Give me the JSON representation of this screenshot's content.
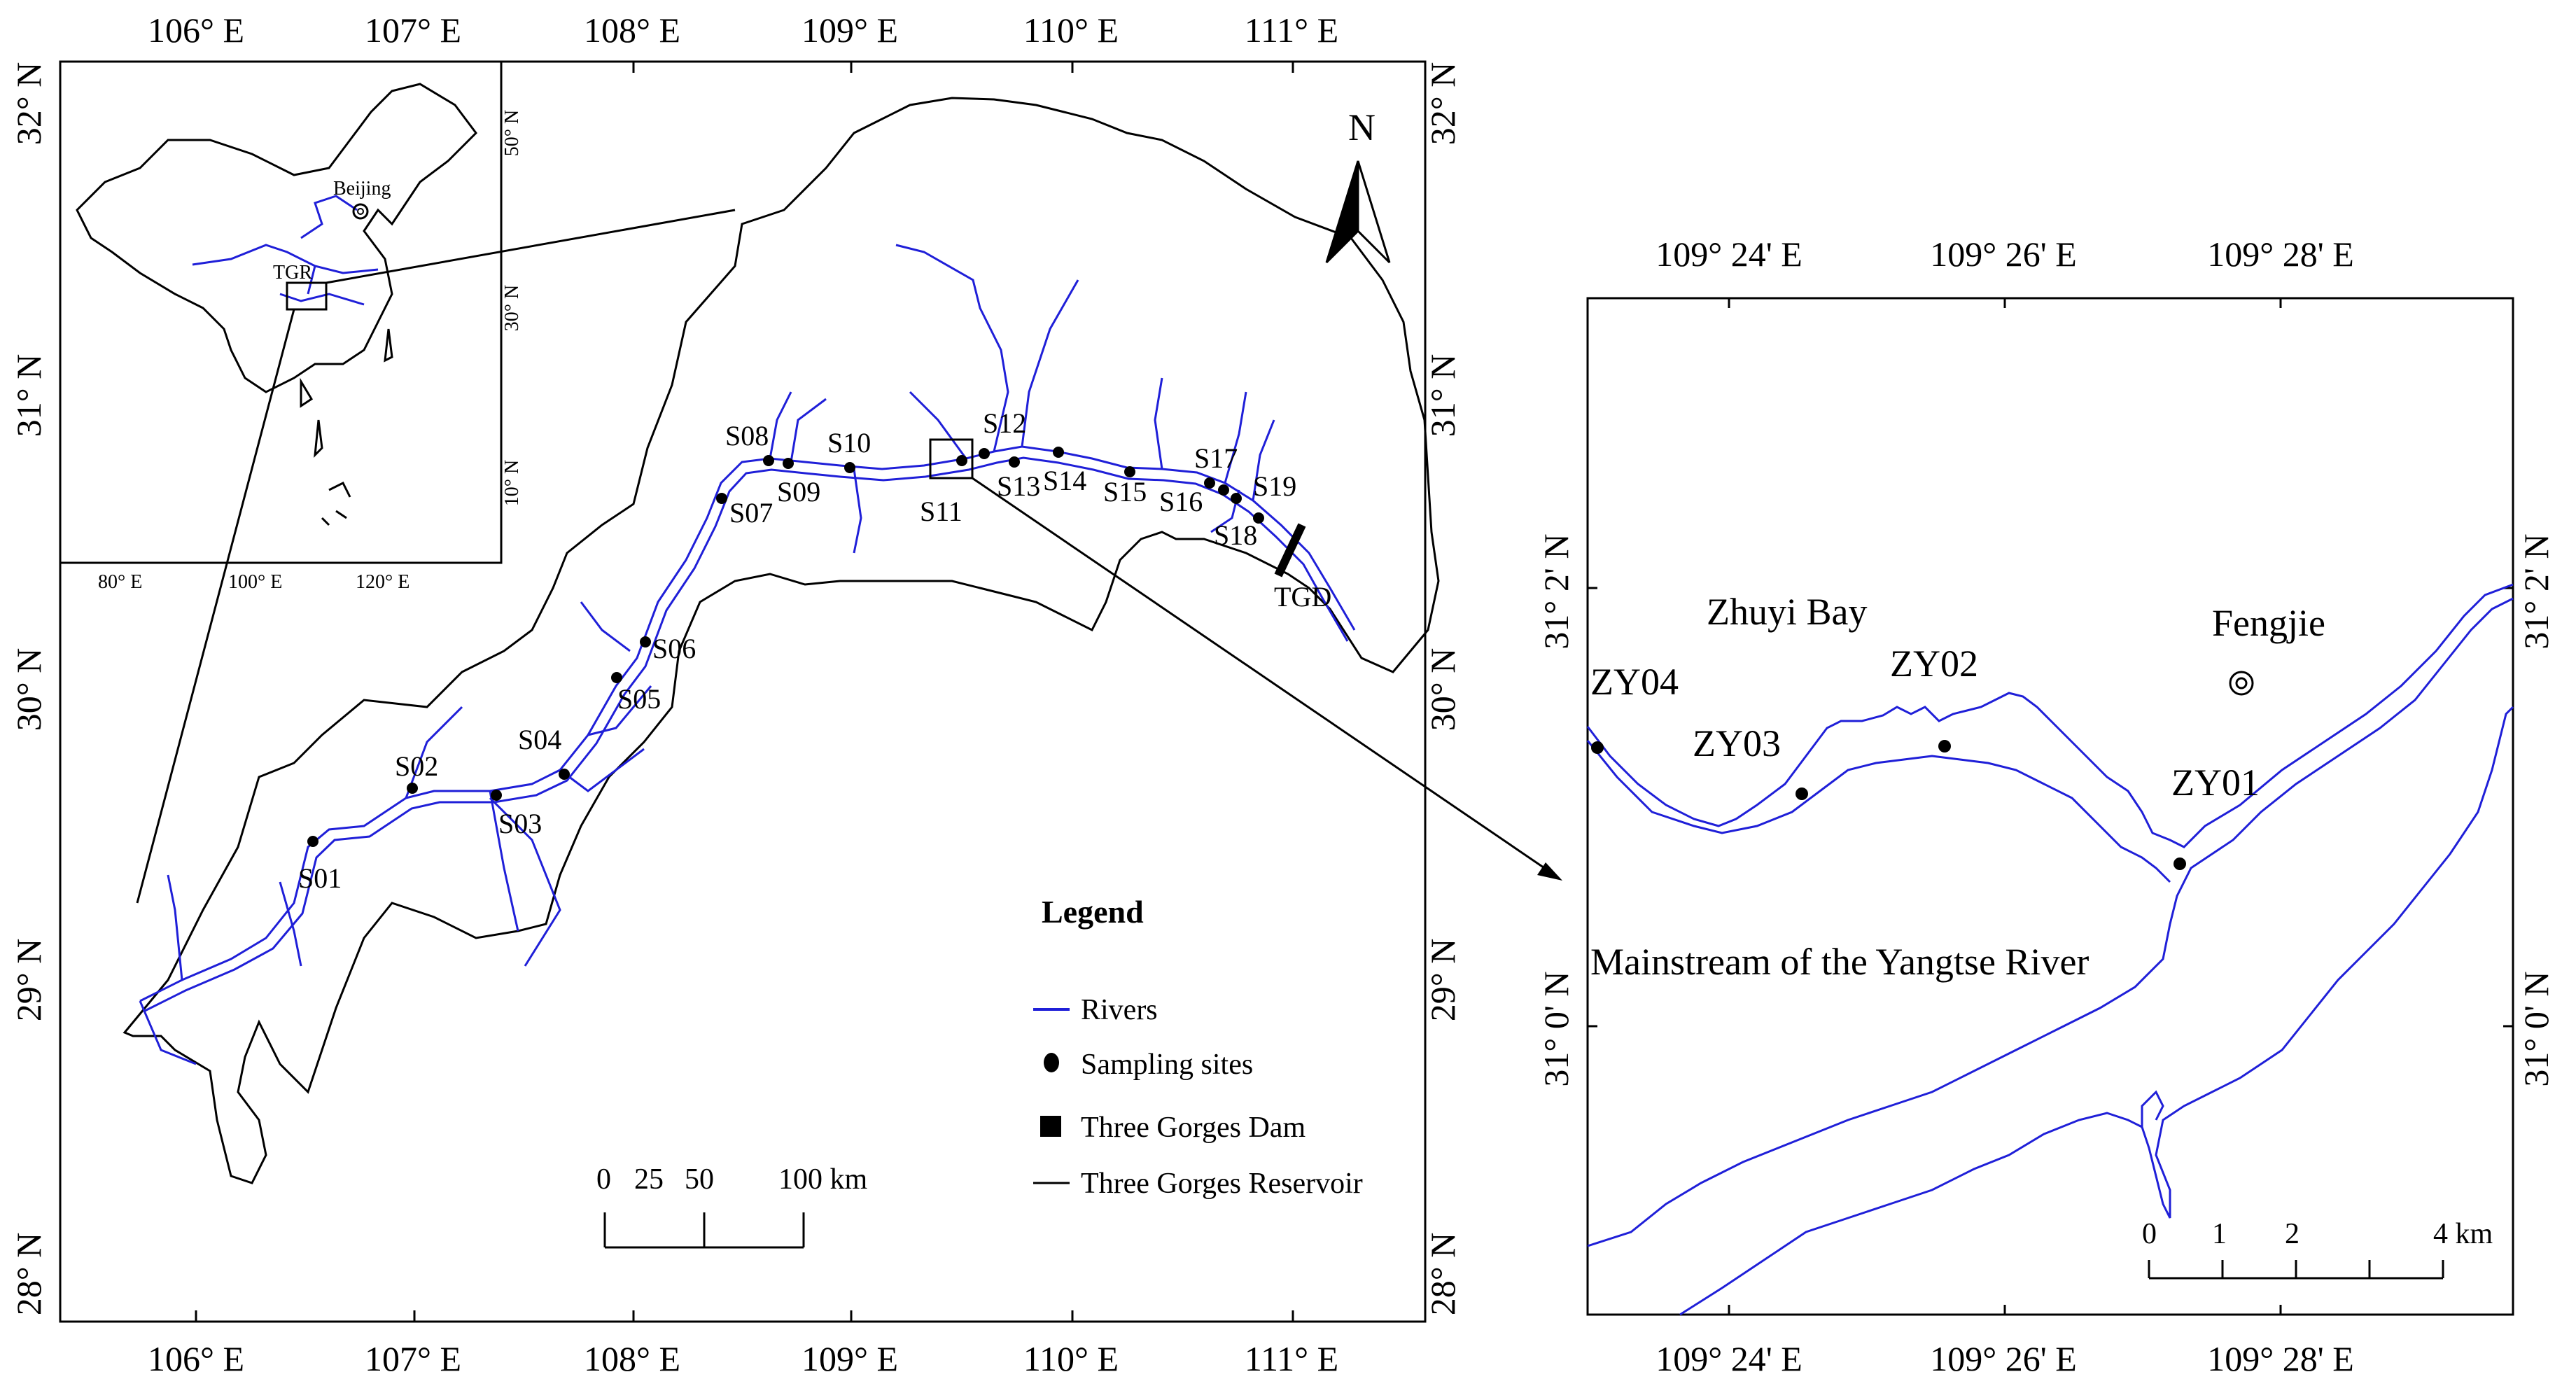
{
  "main_map": {
    "top_ticks": [
      "106° E",
      "107° E",
      "108° E",
      "109° E",
      "110° E",
      "111° E"
    ],
    "bottom_ticks": [
      "106° E",
      "107° E",
      "108° E",
      "109° E",
      "110° E",
      "111° E"
    ],
    "lat_ticks": [
      "32° N",
      "31° N",
      "30° N",
      "29° N",
      "28° N"
    ],
    "north_label": "N",
    "sites": [
      "S01",
      "S02",
      "S03",
      "S04",
      "S05",
      "S06",
      "S07",
      "S08",
      "S09",
      "S10",
      "S11",
      "S12",
      "S13",
      "S14",
      "S15",
      "S16",
      "S17",
      "S18",
      "S19"
    ],
    "dam_label": "TGD",
    "scale": {
      "labels": [
        "0",
        "25",
        "50",
        "100 km"
      ]
    },
    "legend": {
      "title": "Legend",
      "items": [
        "Rivers",
        "Sampling sites",
        "Three Gorges Dam",
        "Three Gorges Reservoir"
      ]
    }
  },
  "inset_china": {
    "labels": {
      "beijing": "Beijing",
      "tgr": "TGR"
    },
    "lon_ticks": [
      "80° E",
      "100° E",
      "120° E"
    ],
    "lat_ticks": [
      "50° N",
      "30° N",
      "10° N"
    ]
  },
  "detail_map": {
    "top_ticks": [
      "109° 24' E",
      "109° 26' E",
      "109° 28' E"
    ],
    "bottom_ticks": [
      "109° 24' E",
      "109° 26' E",
      "109° 28' E"
    ],
    "lat_ticks": [
      "31° 2' N",
      "31° 0' N"
    ],
    "labels": {
      "bay": "Zhuyi Bay",
      "town": "Fengjie",
      "mainstream": "Mainstream of the Yangtse River"
    },
    "sites": [
      "ZY01",
      "ZY02",
      "ZY03",
      "ZY04"
    ],
    "scale": {
      "labels": [
        "0",
        "1",
        "2",
        "4 km"
      ]
    }
  },
  "colors": {
    "river": "#1f1fd8",
    "boundary": "#000000"
  }
}
